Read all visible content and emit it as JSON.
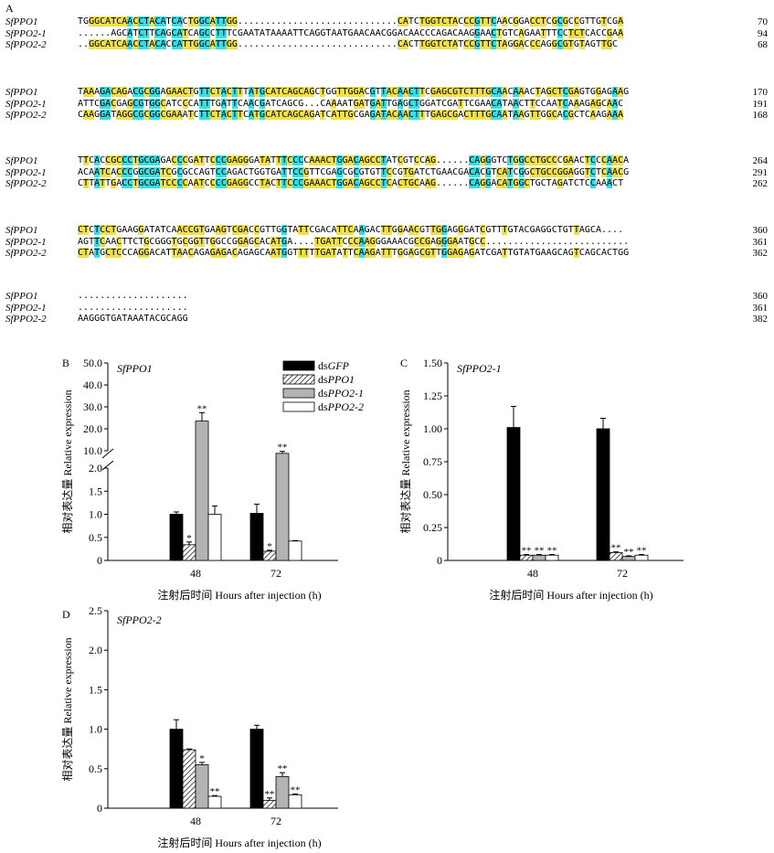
{
  "panel_a": {
    "label": "A",
    "blocks": [
      {
        "rows": [
          {
            "name": "SfPPO1",
            "seq": "TGGGCATCAACCTACATCACTGGCATTGG.............................CATCTGGTCTACCCGTTCAACGGACCTCGCGCCGTTGTCGA",
            "num": "70"
          },
          {
            "name": "SfPPO2-1",
            "seq": "......AGCATCTTCAGCATCAGCCTTTCGAATATAAAATTCAGGTAATGAACAACGGACAACCCAGACAAGGAACTGTCAGAATTTCCTCTCACCGAA",
            "num": "94"
          },
          {
            "name": "SfPPO2-2",
            "seq": "..GGCATCAACCTACACCATTGGCATTGG.............................CACTTGGTCTATCCGTTCTAGGACCCAGGCGTGTAGTTGC",
            "num": "68"
          }
        ]
      },
      {
        "rows": [
          {
            "name": "SfPPO1",
            "seq": "TAAAGACAGACGCGGAGAACTGTTCTACTTTATGCATCAGCAGCTGGTTGGACGTTACAACTTCGAGCGTCTTTGCAACAAACTAGCTCGAGTGGAGAAG",
            "num": "170"
          },
          {
            "name": "SfPPO2-1",
            "seq": "ATTCGACGAGCGTGGCATCCCATTTGATTCAACGATCAGCG...CAAAATGATGATTGAGCTGGATCGATTCGAACATAACTTCCAATCAAAGAGCAAC",
            "num": "191"
          },
          {
            "name": "SfPPO2-2",
            "seq": "CAAGGATAGGCGCGGCGAAATCTTCTACTTCATGCATCAGCAGATCATTGCGAGATACAACTTTGAGCGACTTTGCAATAAGTTGGCACGCTCAAGAAA",
            "num": "168"
          }
        ]
      },
      {
        "rows": [
          {
            "name": "SfPPO1",
            "seq": "TTCACCGCCCTGCGAGACCCGATTCCCGAGGGATATTTCCCCAAACTGGACAGCCTATCGTCCAG......CAGGGTCTGGCCTGCCCGAACTCCCAACA",
            "num": "264"
          },
          {
            "name": "SfPPO2-1",
            "seq": "ACAATCACCCGGCGATCGCGCCAGTCCAGACTGGTGATTCCGTTCGAGCGCGTGTTCCGTGATCTGAACGACACGTCATCGGCTGCCGGAGGTCTCAACG",
            "num": "291"
          },
          {
            "name": "SfPPO2-2",
            "seq": "CTTATTGACCTGCGATCCCCAATCCCCGAGGCCTACTTCCCGAAACTGGACAGCCTCACTGCAAG......CAGGACATGGCTGCTAGATCTCCAAACT",
            "num": "262"
          }
        ]
      },
      {
        "rows": [
          {
            "name": "SfPPO1",
            "seq": "CTCTCCTGAAGGATATCAACCGTGAAGTCGACCGTTGGTATTCGACATTCAAGACTTGGAACGTTGGAGGGATCGTTTGTACGAGGCTGTTAGCA....",
            "num": "360"
          },
          {
            "name": "SfPPO2-1",
            "seq": "AGTTCAACTTCTGCGGGTGCGGTTGGCCGGAGCACATGA....TGATTCCCAAGGGAAACGCCGAGGGAATGCC..........................",
            "num": "361"
          },
          {
            "name": "SfPPO2-2",
            "seq": "CTATGCTCCCAGGACATTAACAGAGAGACAGAGCAATGGTTTTTGATATTCAAGATTTGGAGCGTTGGAGAGATCGATTGTATGAAGCAGTCAGCACTGG",
            "num": "362"
          }
        ]
      },
      {
        "rows": [
          {
            "name": "SfPPO1",
            "seq": "....................",
            "num": "360"
          },
          {
            "name": "SfPPO2-1",
            "seq": "....................",
            "num": "361"
          },
          {
            "name": "SfPPO2-2",
            "seq": "AAGGGTGATAAATACGCAGG",
            "num": "382"
          }
        ]
      }
    ],
    "colors": {
      "conserved_all": "#33e0e6",
      "conserved_two": "#f0e04a"
    }
  },
  "chart_data": [
    {
      "panel": "B",
      "type": "bar",
      "title": "SfPPO1",
      "ylabel": "相对表达量 Relative expression",
      "xlabel": "注射后时间 Hours after injection (h)",
      "categories": [
        "48",
        "72"
      ],
      "axis_break": {
        "lower_max": 2.0,
        "upper_min": 10.0,
        "upper_max": 50.0
      },
      "lower_ticks": [
        "0",
        "0.5",
        "1.0",
        "1.5",
        "2.0"
      ],
      "upper_ticks": [
        "10.0",
        "20.0",
        "30.0",
        "40.0",
        "50.0"
      ],
      "series": [
        {
          "name": "dsGFP",
          "values": [
            1.0,
            1.02
          ],
          "errors": [
            0.05,
            0.2
          ],
          "sig": [
            "",
            ""
          ]
        },
        {
          "name": "dsPPO1",
          "values": [
            0.34,
            0.2
          ],
          "errors": [
            0.06,
            0.02
          ],
          "sig": [
            "*",
            "*"
          ]
        },
        {
          "name": "dsPPO2-1",
          "values": [
            23.5,
            8.8
          ],
          "errors": [
            3.8,
            0.9
          ],
          "sig": [
            "**",
            "**"
          ]
        },
        {
          "name": "dsPPO2-2",
          "values": [
            1.0,
            0.42
          ],
          "errors": [
            0.18,
            0.01
          ],
          "sig": [
            "",
            ""
          ]
        }
      ],
      "legend": "top-right",
      "legend_entries": [
        {
          "prefix": "ds",
          "italic": "GFP"
        },
        {
          "prefix": "ds",
          "italic": "PPO1"
        },
        {
          "prefix": "ds",
          "italic": "PPO2-1"
        },
        {
          "prefix": "ds",
          "italic": "PPO2-2"
        }
      ]
    },
    {
      "panel": "C",
      "type": "bar",
      "title": "SfPPO2-1",
      "ylabel": "相对表达量 Relative expression",
      "xlabel": "注射后时间 Hours after injection (h)",
      "categories": [
        "48",
        "72"
      ],
      "ylim": [
        0,
        1.5
      ],
      "ticks": [
        "0",
        "0.25",
        "0.50",
        "0.75",
        "1.00",
        "1.25",
        "1.50"
      ],
      "series": [
        {
          "name": "dsGFP",
          "values": [
            1.01,
            1.0
          ],
          "errors": [
            0.16,
            0.08
          ],
          "sig": [
            "",
            ""
          ]
        },
        {
          "name": "dsPPO1",
          "values": [
            0.04,
            0.06
          ],
          "errors": [
            0.005,
            0.005
          ],
          "sig": [
            "**",
            "**"
          ]
        },
        {
          "name": "dsPPO2-1",
          "values": [
            0.04,
            0.03
          ],
          "errors": [
            0.005,
            0.005
          ],
          "sig": [
            "**",
            "**"
          ]
        },
        {
          "name": "dsPPO2-2",
          "values": [
            0.04,
            0.04
          ],
          "errors": [
            0.005,
            0.005
          ],
          "sig": [
            "**",
            "**"
          ]
        }
      ]
    },
    {
      "panel": "D",
      "type": "bar",
      "title": "SfPPO2-2",
      "ylabel": "相对表达量 Relative expression",
      "xlabel": "注射后时间 Hours after injection (h)",
      "categories": [
        "48",
        "72"
      ],
      "ylim": [
        0,
        2.5
      ],
      "ticks": [
        "0",
        "0.5",
        "1.0",
        "1.5",
        "2.0",
        "2.5"
      ],
      "series": [
        {
          "name": "dsGFP",
          "values": [
            1.0,
            1.0
          ],
          "errors": [
            0.12,
            0.05
          ],
          "sig": [
            "",
            ""
          ]
        },
        {
          "name": "dsPPO1",
          "values": [
            0.74,
            0.1
          ],
          "errors": [
            0.01,
            0.03
          ],
          "sig": [
            "",
            "**"
          ]
        },
        {
          "name": "dsPPO2-1",
          "values": [
            0.55,
            0.4
          ],
          "errors": [
            0.03,
            0.05
          ],
          "sig": [
            "*",
            "**"
          ]
        },
        {
          "name": "dsPPO2-2",
          "values": [
            0.15,
            0.17
          ],
          "errors": [
            0.01,
            0.01
          ],
          "sig": [
            "**",
            "**"
          ]
        }
      ]
    }
  ]
}
